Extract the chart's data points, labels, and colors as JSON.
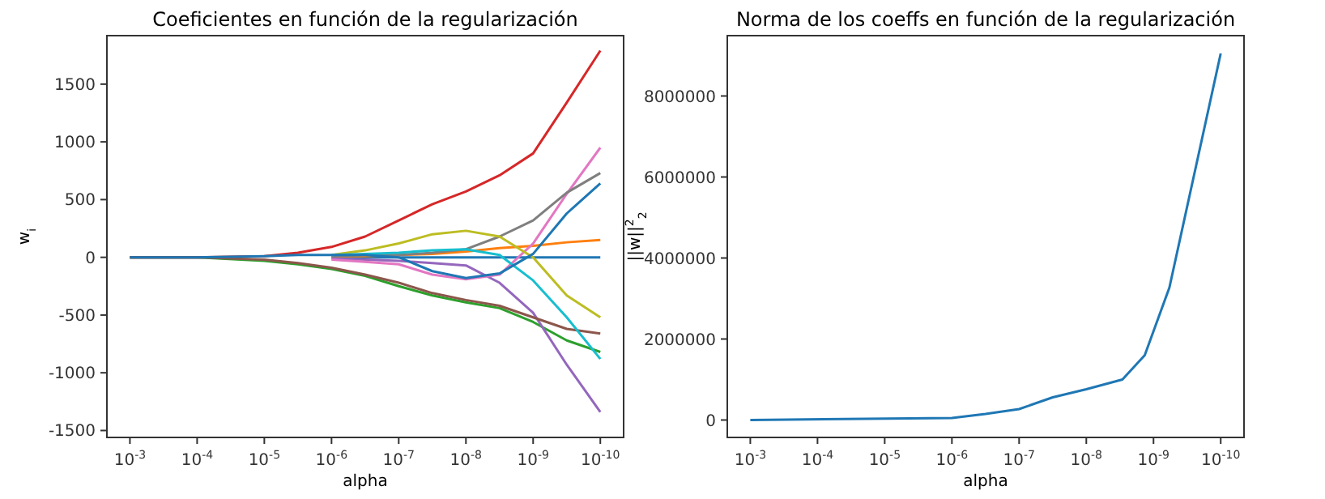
{
  "chart_data": [
    {
      "type": "line",
      "title": "Coeficientes en función de la regularización",
      "xlabel": "alpha",
      "ylabel": "w$_{i}$",
      "log": "x",
      "grid": false,
      "x": [
        0.001,
        0.0001,
        1e-05,
        3.16e-06,
        1e-06,
        3.16e-07,
        1e-07,
        3.16e-08,
        1e-08,
        3.16e-09,
        1e-09,
        3.16e-10,
        1e-10
      ],
      "xlim": [
        0.0022,
        4.5e-11
      ],
      "xticks": [
        {
          "value": 0.001,
          "label": "10$^{-3}$"
        },
        {
          "value": 0.0001,
          "label": "10$^{-4}$"
        },
        {
          "value": 1e-05,
          "label": "10$^{-5}$"
        },
        {
          "value": 1e-06,
          "label": "10$^{-6}$"
        },
        {
          "value": 1e-07,
          "label": "10$^{-7}$"
        },
        {
          "value": 1e-08,
          "label": "10$^{-8}$"
        },
        {
          "value": 1e-09,
          "label": "10$^{-9}$"
        },
        {
          "value": 1e-10,
          "label": "10$^{-10}$"
        }
      ],
      "ylim": [
        -1560,
        1920
      ],
      "yticks": [
        -1500,
        -1000,
        -500,
        0,
        500,
        1000,
        1500
      ],
      "series": [
        {
          "color": "#1f77b4",
          "values": [
            null,
            null,
            null,
            null,
            0,
            0,
            0,
            0,
            0,
            0,
            0,
            0,
            0
          ]
        },
        {
          "color": "#ff7f0e",
          "values": [
            null,
            null,
            null,
            null,
            10,
            10,
            20,
            30,
            50,
            80,
            100,
            130,
            150
          ]
        },
        {
          "color": "#2ca02c",
          "values": [
            0,
            0,
            -30,
            -60,
            -100,
            -160,
            -250,
            -330,
            -390,
            -440,
            -560,
            -720,
            -820
          ]
        },
        {
          "color": "#d62728",
          "values": [
            0,
            0,
            10,
            40,
            90,
            180,
            320,
            460,
            570,
            710,
            900,
            1340,
            1790
          ]
        },
        {
          "color": "#9467bd",
          "values": [
            null,
            null,
            null,
            null,
            -10,
            -20,
            -30,
            -50,
            -70,
            -220,
            -480,
            -930,
            -1340
          ]
        },
        {
          "color": "#8c564b",
          "values": [
            0,
            0,
            -20,
            -50,
            -90,
            -150,
            -220,
            -310,
            -370,
            -420,
            -520,
            -620,
            -660
          ]
        },
        {
          "color": "#e377c2",
          "values": [
            null,
            null,
            null,
            null,
            -20,
            -40,
            -60,
            -150,
            -190,
            -150,
            120,
            550,
            950
          ]
        },
        {
          "color": "#7f7f7f",
          "values": [
            null,
            null,
            null,
            null,
            10,
            20,
            20,
            40,
            70,
            180,
            320,
            560,
            730
          ]
        },
        {
          "color": "#bcbd22",
          "values": [
            null,
            null,
            null,
            null,
            20,
            60,
            120,
            200,
            230,
            180,
            0,
            -330,
            -520
          ]
        },
        {
          "color": "#17becf",
          "values": [
            null,
            null,
            null,
            null,
            20,
            30,
            40,
            60,
            70,
            20,
            -200,
            -520,
            -880
          ]
        },
        {
          "color": "#1f77b4",
          "values": [
            0,
            0,
            10,
            20,
            20,
            20,
            0,
            -120,
            -180,
            -140,
            30,
            380,
            640
          ]
        }
      ]
    },
    {
      "type": "line",
      "title": "Norma de los coeffs en función de la regularización",
      "xlabel": "alpha",
      "ylabel": "||w||$^{2}$$_{2}$",
      "log": "x",
      "grid": false,
      "x": [
        0.001,
        1e-06,
        3.16e-07,
        1e-07,
        3.16e-08,
        1e-08,
        2.9e-09,
        1.35e-09,
        5.8e-10,
        1e-10
      ],
      "xlim": [
        0.0022,
        4.5e-11
      ],
      "xticks": [
        {
          "value": 0.001,
          "label": "10$^{-3}$"
        },
        {
          "value": 0.0001,
          "label": "10$^{-4}$"
        },
        {
          "value": 1e-05,
          "label": "10$^{-5}$"
        },
        {
          "value": 1e-06,
          "label": "10$^{-6}$"
        },
        {
          "value": 1e-07,
          "label": "10$^{-7}$"
        },
        {
          "value": 1e-08,
          "label": "10$^{-8}$"
        },
        {
          "value": 1e-09,
          "label": "10$^{-9}$"
        },
        {
          "value": 1e-10,
          "label": "10$^{-10}$"
        }
      ],
      "ylim": [
        -430000,
        9490000
      ],
      "yticks": [
        0,
        2000000,
        4000000,
        6000000,
        8000000
      ],
      "series": [
        {
          "color": "#1f77b4",
          "values": [
            0,
            50000,
            150000,
            270000,
            560000,
            760000,
            1000000,
            1600000,
            3270000,
            9050000
          ]
        }
      ]
    }
  ]
}
